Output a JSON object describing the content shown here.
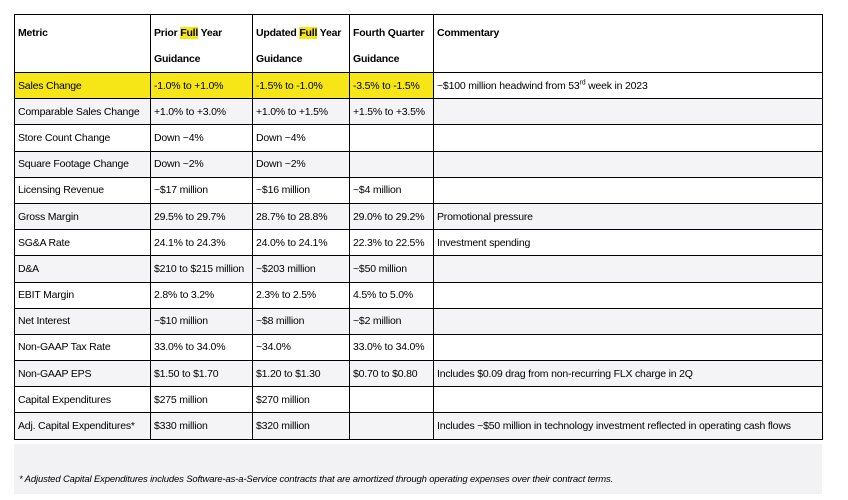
{
  "table": {
    "headers": {
      "metric": "Metric",
      "prior_pre": "Prior ",
      "prior_hl": "Full",
      "prior_post": " Year",
      "prior_line2": "Guidance",
      "updated_pre": "Updated ",
      "updated_hl": "Full",
      "updated_post": " Year",
      "updated_line2": "Guidance",
      "fourth_line1": "Fourth Quarter",
      "fourth_line2": "Guidance",
      "commentary": "Commentary"
    },
    "rows": [
      {
        "metric": "Sales Change",
        "prior": "-1.0% to +1.0%",
        "updated": "-1.5% to -1.0%",
        "fourth": "-3.5% to -1.5%",
        "commentary_pre": "~$100 million headwind from 53",
        "commentary_sup": "rd",
        "commentary_post": " week in 2023"
      },
      {
        "metric": "Comparable Sales Change",
        "prior": "+1.0% to +3.0%",
        "updated": "+1.0% to +1.5%",
        "fourth": "+1.5% to +3.5%",
        "commentary": ""
      },
      {
        "metric": "Store Count Change",
        "prior": "Down ~4%",
        "updated": "Down ~4%",
        "fourth": "",
        "commentary": ""
      },
      {
        "metric": "Square Footage Change",
        "prior": "Down ~2%",
        "updated": "Down ~2%",
        "fourth": "",
        "commentary": ""
      },
      {
        "metric": "Licensing Revenue",
        "prior": "~$17 million",
        "updated": "~$16 million",
        "fourth": "~$4 million",
        "commentary": ""
      },
      {
        "metric": "Gross Margin",
        "prior": "29.5% to 29.7%",
        "updated": "28.7% to 28.8%",
        "fourth": "29.0% to 29.2%",
        "commentary": "Promotional pressure"
      },
      {
        "metric": "SG&A Rate",
        "prior": "24.1% to 24.3%",
        "updated": "24.0% to 24.1%",
        "fourth": "22.3% to 22.5%",
        "commentary": "Investment spending"
      },
      {
        "metric": "D&A",
        "prior": "$210 to $215 million",
        "updated": "~$203 million",
        "fourth": "~$50 million",
        "commentary": ""
      },
      {
        "metric": "EBIT Margin",
        "prior": "2.8% to 3.2%",
        "updated": "2.3% to 2.5%",
        "fourth": "4.5% to 5.0%",
        "commentary": ""
      },
      {
        "metric": "Net Interest",
        "prior": "~$10 million",
        "updated": "~$8 million",
        "fourth": "~$2 million",
        "commentary": ""
      },
      {
        "metric": "Non-GAAP Tax Rate",
        "prior": "33.0% to 34.0%",
        "updated": "~34.0%",
        "fourth": "33.0% to 34.0%",
        "commentary": ""
      },
      {
        "metric": "Non-GAAP EPS",
        "prior": "$1.50 to $1.70",
        "updated": "$1.20 to $1.30",
        "fourth": "$0.70 to $0.80",
        "commentary": "Includes $0.09 drag from non-recurring FLX charge in 2Q"
      },
      {
        "metric": "Capital Expenditures",
        "prior": "$275 million",
        "updated": "$270 million",
        "fourth": "",
        "commentary": ""
      },
      {
        "metric": "Adj. Capital Expenditures*",
        "prior": "$330 million",
        "updated": "$320 million",
        "fourth": "",
        "commentary": "Includes ~$50 million in technology investment reflected in operating cash flows"
      }
    ]
  },
  "footnote": "* Adjusted Capital Expenditures includes Software-as-a-Service contracts that are amortized through operating expenses over their contract terms.",
  "colors": {
    "highlight": "#f6e617",
    "stripe": "#f4f4f6",
    "footnote_bg": "#f2f2f4"
  }
}
